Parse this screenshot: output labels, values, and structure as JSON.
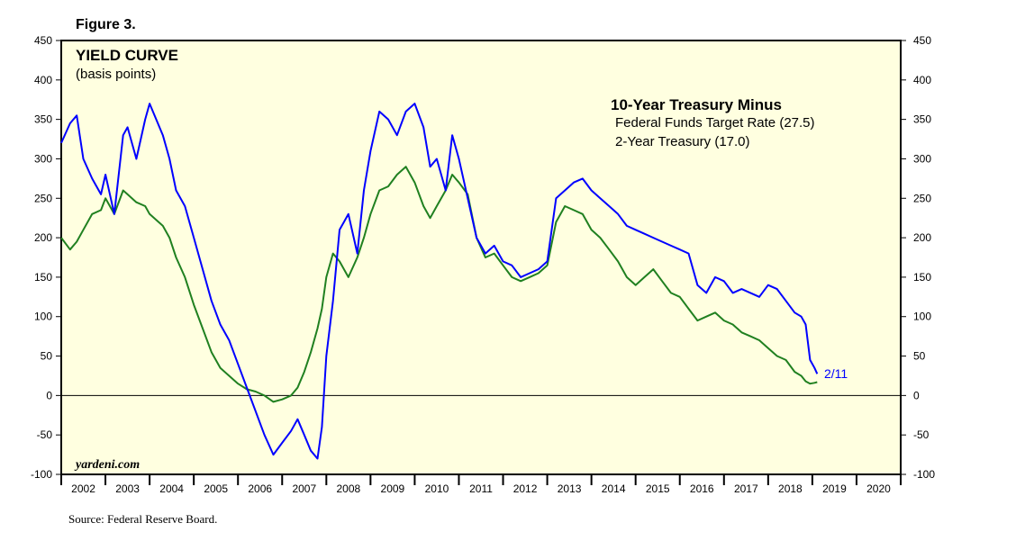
{
  "figure_label": "Figure 3.",
  "source": "Source: Federal Reserve Board.",
  "watermark": "yardeni.com",
  "colors": {
    "panel_bg": "#FFFFE0",
    "fed_funds_series": "#0000FF",
    "two_year_series": "#208020",
    "end_label": "#0000FF"
  },
  "chart_data": {
    "type": "line",
    "title": "YIELD CURVE",
    "subtitle": "(basis points)",
    "legend_heading": "10-Year Treasury Minus",
    "ylim": [
      -100,
      450
    ],
    "yticks": [
      -100,
      -50,
      0,
      50,
      100,
      150,
      200,
      250,
      300,
      350,
      400,
      450
    ],
    "ytick_labels": [
      "-100",
      "-50",
      "0",
      "50",
      "100",
      "150",
      "200",
      "250",
      "300",
      "350",
      "400",
      "450"
    ],
    "xlim": [
      2002,
      2021
    ],
    "xtick_labels": [
      "2002",
      "2003",
      "2004",
      "2005",
      "2006",
      "2007",
      "2008",
      "2009",
      "2010",
      "2011",
      "2012",
      "2013",
      "2014",
      "2015",
      "2016",
      "2017",
      "2018",
      "2019",
      "2020"
    ],
    "end_annotation": "2/11",
    "series": [
      {
        "name": "Federal Funds Target Rate (27.5)",
        "legend_label": "Federal Funds Target Rate (27.5)",
        "x": [
          2002.0,
          2002.2,
          2002.35,
          2002.5,
          2002.7,
          2002.9,
          2003.0,
          2003.2,
          2003.4,
          2003.5,
          2003.7,
          2003.9,
          2004.0,
          2004.3,
          2004.45,
          2004.6,
          2004.8,
          2005.0,
          2005.2,
          2005.4,
          2005.6,
          2005.8,
          2006.0,
          2006.2,
          2006.4,
          2006.6,
          2006.8,
          2007.0,
          2007.2,
          2007.35,
          2007.5,
          2007.65,
          2007.8,
          2007.9,
          2008.0,
          2008.15,
          2008.3,
          2008.5,
          2008.7,
          2008.85,
          2009.0,
          2009.2,
          2009.4,
          2009.6,
          2009.8,
          2010.0,
          2010.2,
          2010.35,
          2010.5,
          2010.7,
          2010.85,
          2011.0,
          2011.2,
          2011.4,
          2011.6,
          2011.8,
          2012.0,
          2012.2,
          2012.4,
          2012.6,
          2012.8,
          2013.0,
          2013.2,
          2013.4,
          2013.6,
          2013.8,
          2014.0,
          2014.2,
          2014.4,
          2014.6,
          2014.8,
          2015.0,
          2015.2,
          2015.4,
          2015.6,
          2015.8,
          2016.0,
          2016.2,
          2016.4,
          2016.6,
          2016.8,
          2017.0,
          2017.2,
          2017.4,
          2017.6,
          2017.8,
          2018.0,
          2018.2,
          2018.4,
          2018.6,
          2018.75,
          2018.85,
          2018.95,
          2019.05,
          2019.11
        ],
        "values": [
          320,
          345,
          355,
          300,
          275,
          255,
          280,
          230,
          330,
          340,
          300,
          350,
          370,
          330,
          300,
          260,
          240,
          200,
          160,
          120,
          90,
          70,
          40,
          10,
          -20,
          -50,
          -75,
          -60,
          -45,
          -30,
          -50,
          -70,
          -80,
          -40,
          50,
          120,
          210,
          230,
          180,
          260,
          310,
          360,
          350,
          330,
          360,
          370,
          340,
          290,
          300,
          260,
          330,
          300,
          250,
          200,
          180,
          190,
          170,
          165,
          150,
          155,
          160,
          170,
          250,
          260,
          270,
          275,
          260,
          250,
          240,
          230,
          215,
          210,
          205,
          200,
          195,
          190,
          185,
          180,
          140,
          130,
          150,
          145,
          130,
          135,
          130,
          125,
          140,
          135,
          120,
          105,
          100,
          90,
          45,
          35,
          27.5
        ]
      },
      {
        "name": "2-Year Treasury (17.0)",
        "legend_label": "2-Year Treasury (17.0)",
        "x": [
          2002.0,
          2002.2,
          2002.35,
          2002.5,
          2002.7,
          2002.9,
          2003.0,
          2003.2,
          2003.4,
          2003.5,
          2003.7,
          2003.9,
          2004.0,
          2004.3,
          2004.45,
          2004.6,
          2004.8,
          2005.0,
          2005.2,
          2005.4,
          2005.6,
          2005.8,
          2006.0,
          2006.2,
          2006.4,
          2006.6,
          2006.8,
          2007.0,
          2007.2,
          2007.35,
          2007.5,
          2007.65,
          2007.8,
          2007.9,
          2008.0,
          2008.15,
          2008.3,
          2008.5,
          2008.7,
          2008.85,
          2009.0,
          2009.2,
          2009.4,
          2009.6,
          2009.8,
          2010.0,
          2010.2,
          2010.35,
          2010.5,
          2010.7,
          2010.85,
          2011.0,
          2011.2,
          2011.4,
          2011.6,
          2011.8,
          2012.0,
          2012.2,
          2012.4,
          2012.6,
          2012.8,
          2013.0,
          2013.2,
          2013.4,
          2013.6,
          2013.8,
          2014.0,
          2014.2,
          2014.4,
          2014.6,
          2014.8,
          2015.0,
          2015.2,
          2015.4,
          2015.6,
          2015.8,
          2016.0,
          2016.2,
          2016.4,
          2016.6,
          2016.8,
          2017.0,
          2017.2,
          2017.4,
          2017.6,
          2017.8,
          2018.0,
          2018.2,
          2018.4,
          2018.6,
          2018.75,
          2018.85,
          2018.95,
          2019.05,
          2019.11
        ],
        "values": [
          200,
          185,
          195,
          210,
          230,
          235,
          250,
          230,
          260,
          255,
          245,
          240,
          230,
          215,
          200,
          175,
          150,
          115,
          85,
          55,
          35,
          25,
          15,
          8,
          5,
          0,
          -8,
          -5,
          0,
          10,
          30,
          55,
          85,
          110,
          150,
          180,
          170,
          150,
          175,
          200,
          230,
          260,
          265,
          280,
          290,
          270,
          240,
          225,
          240,
          260,
          280,
          270,
          255,
          200,
          175,
          180,
          165,
          150,
          145,
          150,
          155,
          165,
          220,
          240,
          235,
          230,
          210,
          200,
          185,
          170,
          150,
          140,
          150,
          160,
          145,
          130,
          125,
          110,
          95,
          100,
          105,
          95,
          90,
          80,
          75,
          70,
          60,
          50,
          45,
          30,
          25,
          18,
          15,
          16,
          17
        ]
      }
    ]
  }
}
